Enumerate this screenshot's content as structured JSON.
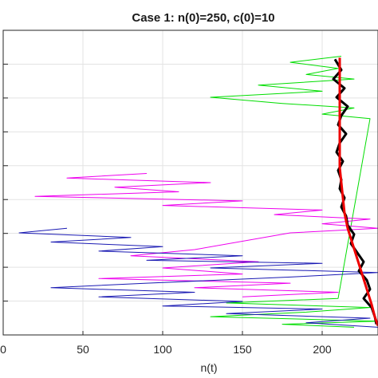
{
  "chart_data": {
    "type": "line",
    "title": "Case 1: n(0)=250, c(0)=10",
    "xlabel": "n(t)",
    "ylabel": "",
    "xlim": [
      0,
      235
    ],
    "x_ticks": [
      0,
      50,
      100,
      150,
      200
    ],
    "x_tick_labels": [
      "0",
      "50",
      "100",
      "150",
      "200"
    ],
    "ylim": [
      0,
      1
    ],
    "y_tick_count": 9,
    "grid": true,
    "series": [
      {
        "color": "#00dd00",
        "values": [
          [
            212,
            0.915
          ],
          [
            180,
            0.895
          ],
          [
            210,
            0.875
          ],
          [
            190,
            0.855
          ],
          [
            220,
            0.84
          ],
          [
            160,
            0.82
          ],
          [
            200,
            0.8
          ],
          [
            130,
            0.78
          ],
          [
            175,
            0.76
          ],
          [
            220,
            0.745
          ],
          [
            200,
            0.725
          ],
          [
            230,
            0.71
          ],
          [
            210,
            0.12
          ],
          [
            140,
            0.105
          ],
          [
            230,
            0.09
          ],
          [
            190,
            0.075
          ],
          [
            130,
            0.06
          ],
          [
            235,
            0.045
          ],
          [
            175,
            0.035
          ],
          [
            220,
            0.025
          ]
        ]
      },
      {
        "color": "#ee00ee",
        "values": [
          [
            90,
            0.53
          ],
          [
            40,
            0.515
          ],
          [
            130,
            0.5
          ],
          [
            70,
            0.485
          ],
          [
            110,
            0.47
          ],
          [
            20,
            0.455
          ],
          [
            150,
            0.44
          ],
          [
            100,
            0.425
          ],
          [
            200,
            0.41
          ],
          [
            170,
            0.395
          ],
          [
            230,
            0.38
          ],
          [
            200,
            0.365
          ],
          [
            235,
            0.35
          ],
          [
            180,
            0.335
          ],
          [
            120,
            0.28
          ],
          [
            80,
            0.26
          ],
          [
            160,
            0.24
          ],
          [
            100,
            0.22
          ],
          [
            150,
            0.2
          ],
          [
            60,
            0.185
          ],
          [
            180,
            0.17
          ],
          [
            120,
            0.155
          ],
          [
            210,
            0.14
          ],
          [
            150,
            0.125
          ]
        ]
      },
      {
        "color": "#1a1ab3",
        "values": [
          [
            40,
            0.35
          ],
          [
            10,
            0.335
          ],
          [
            80,
            0.32
          ],
          [
            30,
            0.305
          ],
          [
            100,
            0.29
          ],
          [
            60,
            0.275
          ],
          [
            150,
            0.26
          ],
          [
            90,
            0.245
          ],
          [
            200,
            0.235
          ],
          [
            130,
            0.22
          ],
          [
            235,
            0.205
          ],
          [
            180,
            0.19
          ],
          [
            90,
            0.17
          ],
          [
            30,
            0.155
          ],
          [
            120,
            0.14
          ],
          [
            60,
            0.125
          ],
          [
            150,
            0.11
          ],
          [
            100,
            0.095
          ],
          [
            200,
            0.085
          ],
          [
            140,
            0.07
          ],
          [
            230,
            0.055
          ],
          [
            190,
            0.04
          ],
          [
            235,
            0.025
          ]
        ]
      },
      {
        "color": "#000000",
        "values": [
          [
            208,
            0.905
          ],
          [
            212,
            0.87
          ],
          [
            207,
            0.84
          ],
          [
            214,
            0.81
          ],
          [
            209,
            0.78
          ],
          [
            216,
            0.75
          ],
          [
            212,
            0.72
          ],
          [
            210,
            0.69
          ],
          [
            215,
            0.66
          ],
          [
            211,
            0.63
          ],
          [
            209,
            0.6
          ],
          [
            213,
            0.57
          ],
          [
            210,
            0.54
          ],
          [
            212,
            0.51
          ],
          [
            211,
            0.48
          ],
          [
            214,
            0.45
          ],
          [
            212,
            0.42
          ],
          [
            215,
            0.39
          ],
          [
            216,
            0.36
          ],
          [
            220,
            0.33
          ],
          [
            218,
            0.3
          ],
          [
            222,
            0.27
          ],
          [
            226,
            0.24
          ],
          [
            223,
            0.21
          ],
          [
            228,
            0.18
          ],
          [
            230,
            0.15
          ],
          [
            226,
            0.12
          ],
          [
            231,
            0.09
          ],
          [
            233,
            0.06
          ],
          [
            234,
            0.035
          ]
        ]
      },
      {
        "color": "#ee0000",
        "values": [
          [
            211,
            0.91
          ],
          [
            211,
            0.85
          ],
          [
            211,
            0.8
          ],
          [
            211,
            0.75
          ],
          [
            211,
            0.7
          ],
          [
            211,
            0.65
          ],
          [
            211,
            0.6
          ],
          [
            211,
            0.55
          ],
          [
            212,
            0.5
          ],
          [
            213,
            0.45
          ],
          [
            214,
            0.4
          ],
          [
            216,
            0.35
          ],
          [
            219,
            0.3
          ],
          [
            222,
            0.25
          ],
          [
            225,
            0.2
          ],
          [
            228,
            0.15
          ],
          [
            231,
            0.1
          ],
          [
            233,
            0.06
          ],
          [
            235,
            0.03
          ]
        ]
      }
    ]
  }
}
